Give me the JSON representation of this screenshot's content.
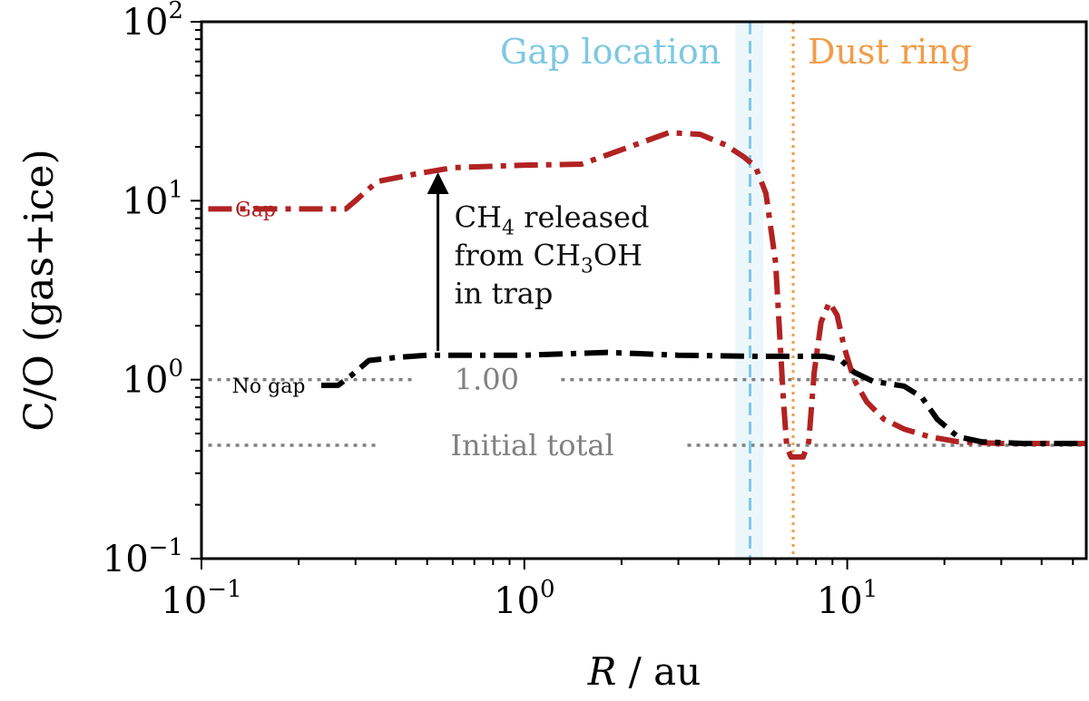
{
  "chart_data": {
    "type": "line",
    "xscale": "log",
    "yscale": "log",
    "xlim": [
      0.1,
      55
    ],
    "ylim": [
      0.1,
      100
    ],
    "xlabel": {
      "italic": "R",
      "rest": " / au"
    },
    "ylabel": "C/O (gas+ice)",
    "x_ticks": [
      {
        "value": 0.1,
        "base": "10",
        "exp": "−1"
      },
      {
        "value": 1,
        "base": "10",
        "exp": "0"
      },
      {
        "value": 10,
        "base": "10",
        "exp": "1"
      }
    ],
    "y_ticks": [
      {
        "value": 0.1,
        "base": "10",
        "exp": "−1"
      },
      {
        "value": 1,
        "base": "10",
        "exp": "0"
      },
      {
        "value": 10,
        "base": "10",
        "exp": "1"
      },
      {
        "value": 100,
        "base": "10",
        "exp": "2"
      }
    ],
    "series": [
      {
        "name": "Gap",
        "color": "#b22222",
        "dash": "dash-dot",
        "points": [
          [
            0.105,
            9.0
          ],
          [
            0.28,
            9.0
          ],
          [
            0.3,
            10.0
          ],
          [
            0.35,
            12.8
          ],
          [
            0.45,
            14.0
          ],
          [
            0.6,
            15.3
          ],
          [
            1.0,
            15.8
          ],
          [
            1.5,
            16.0
          ],
          [
            1.8,
            18.0
          ],
          [
            2.2,
            20.5
          ],
          [
            2.8,
            24.0
          ],
          [
            3.5,
            23.5
          ],
          [
            4.2,
            20.5
          ],
          [
            4.8,
            17.5
          ],
          [
            5.2,
            15.5
          ],
          [
            5.6,
            11.0
          ],
          [
            6.0,
            4.5
          ],
          [
            6.2,
            1.6
          ],
          [
            6.35,
            0.75
          ],
          [
            6.5,
            0.42
          ],
          [
            6.7,
            0.37
          ],
          [
            7.3,
            0.37
          ],
          [
            7.6,
            0.45
          ],
          [
            7.9,
            1.1
          ],
          [
            8.3,
            2.1
          ],
          [
            8.8,
            2.7
          ],
          [
            9.3,
            2.3
          ],
          [
            9.8,
            1.5
          ],
          [
            10.5,
            1.0
          ],
          [
            11.5,
            0.75
          ],
          [
            13.0,
            0.6
          ],
          [
            15.0,
            0.53
          ],
          [
            18.0,
            0.48
          ],
          [
            22.0,
            0.45
          ],
          [
            30.0,
            0.44
          ],
          [
            55.0,
            0.44
          ]
        ]
      },
      {
        "name": "No gap",
        "color": "#000000",
        "dash": "dash-dot",
        "points": [
          [
            0.235,
            0.93
          ],
          [
            0.265,
            0.93
          ],
          [
            0.29,
            1.05
          ],
          [
            0.33,
            1.28
          ],
          [
            0.4,
            1.33
          ],
          [
            0.5,
            1.37
          ],
          [
            1.0,
            1.37
          ],
          [
            1.8,
            1.42
          ],
          [
            2.2,
            1.4
          ],
          [
            3.0,
            1.37
          ],
          [
            5.0,
            1.35
          ],
          [
            7.0,
            1.35
          ],
          [
            8.5,
            1.35
          ],
          [
            9.5,
            1.3
          ],
          [
            10.5,
            1.1
          ],
          [
            12.0,
            0.98
          ],
          [
            15.0,
            0.92
          ],
          [
            17.0,
            0.8
          ],
          [
            19.0,
            0.6
          ],
          [
            22.0,
            0.48
          ],
          [
            26.0,
            0.45
          ],
          [
            35.0,
            0.44
          ],
          [
            55.0,
            0.44
          ]
        ]
      }
    ],
    "reference_lines": [
      {
        "y": 1.0,
        "label": "1.00",
        "color": "#808080",
        "segments": [
          [
            0.105,
            0.45
          ],
          [
            1.3,
            55
          ]
        ]
      },
      {
        "y": 0.43,
        "label": "Initial total",
        "color": "#808080",
        "segments": [
          [
            0.105,
            0.35
          ],
          [
            3.2,
            55
          ]
        ]
      }
    ],
    "gap": {
      "x": 5.0,
      "band": [
        4.5,
        5.5
      ],
      "label": "Gap location",
      "color": "#7ec8e3"
    },
    "dust_ring": {
      "x": 6.8,
      "label": "Dust ring",
      "color": "#f39c4a"
    },
    "series_labels": {
      "gap": "Gap",
      "no_gap": "No gap"
    },
    "annotation": {
      "arrow_x": 0.54,
      "arrow_from_y": 1.45,
      "arrow_to_y": 14.0,
      "lines": [
        {
          "pre": "CH",
          "sub": "4",
          "post": " released"
        },
        {
          "pre": "from CH",
          "sub": "3",
          "post": "OH"
        },
        {
          "pre": "in trap",
          "sub": "",
          "post": ""
        }
      ]
    }
  }
}
